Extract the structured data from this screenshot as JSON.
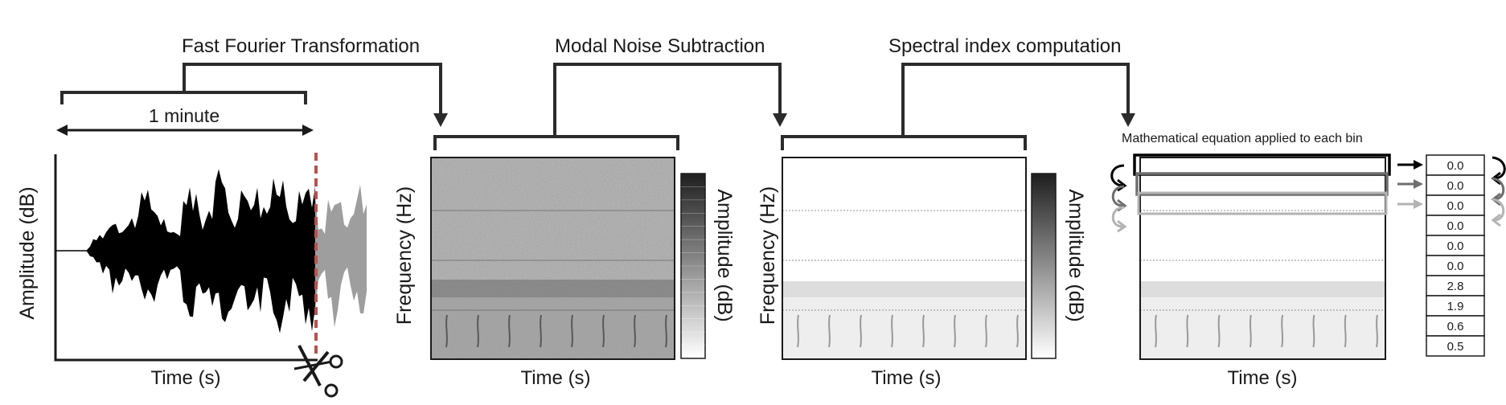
{
  "steps": {
    "fft": "Fast Fourier Transformation",
    "noise": "Modal Noise Subtraction",
    "index": "Spectral index computation"
  },
  "duration_label": "1 minute",
  "equation_label": "Mathematical equation applied to each bin",
  "waveform": {
    "ylabel": "Amplitude (dB)",
    "xlabel": "Time (s)",
    "colors": {
      "kept": "#000000",
      "discarded": "#9e9e9e",
      "cut_line": "#b5534e"
    }
  },
  "spectrogram_raw": {
    "ylabel": "Frequency (Hz)",
    "xlabel": "Time (s)",
    "colorbar_label": "Amplitude (dB)"
  },
  "spectrogram_denoised": {
    "ylabel": "Frequency (Hz)",
    "xlabel": "Time (s)",
    "colorbar_label": "Amplitude (dB)"
  },
  "spectrogram_index": {
    "xlabel": "Time (s)"
  },
  "bin_values": [
    "0.0",
    "0.0",
    "0.0",
    "0.0",
    "0.0",
    "0.0",
    "2.8",
    "1.9",
    "0.6",
    "0.5"
  ]
}
